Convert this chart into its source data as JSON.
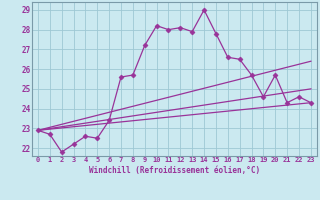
{
  "xlabel": "Windchill (Refroidissement éolien,°C)",
  "bg_color": "#cbe9f0",
  "line_color": "#993399",
  "grid_color": "#9ec8d4",
  "spine_color": "#7a9aa8",
  "xlim": [
    -0.5,
    23.5
  ],
  "ylim": [
    21.6,
    29.4
  ],
  "yticks": [
    22,
    23,
    24,
    25,
    26,
    27,
    28,
    29
  ],
  "xticks": [
    0,
    1,
    2,
    3,
    4,
    5,
    6,
    7,
    8,
    9,
    10,
    11,
    12,
    13,
    14,
    15,
    16,
    17,
    18,
    19,
    20,
    21,
    22,
    23
  ],
  "zigzag": {
    "x": [
      0,
      1,
      2,
      3,
      4,
      5,
      6,
      7,
      8,
      9,
      10,
      11,
      12,
      13,
      14,
      15,
      16,
      17,
      18,
      19,
      20,
      21,
      22,
      23
    ],
    "y": [
      22.9,
      22.7,
      21.8,
      22.2,
      22.6,
      22.5,
      23.4,
      25.6,
      25.7,
      27.2,
      28.2,
      28.0,
      28.1,
      27.9,
      29.0,
      27.8,
      26.6,
      26.5,
      25.7,
      24.6,
      25.7,
      24.3,
      24.6,
      24.3
    ]
  },
  "straight_lines": [
    {
      "x": [
        0,
        23
      ],
      "y": [
        22.9,
        24.3
      ]
    },
    {
      "x": [
        0,
        23
      ],
      "y": [
        22.9,
        25.0
      ]
    },
    {
      "x": [
        0,
        23
      ],
      "y": [
        22.9,
        26.4
      ]
    }
  ]
}
